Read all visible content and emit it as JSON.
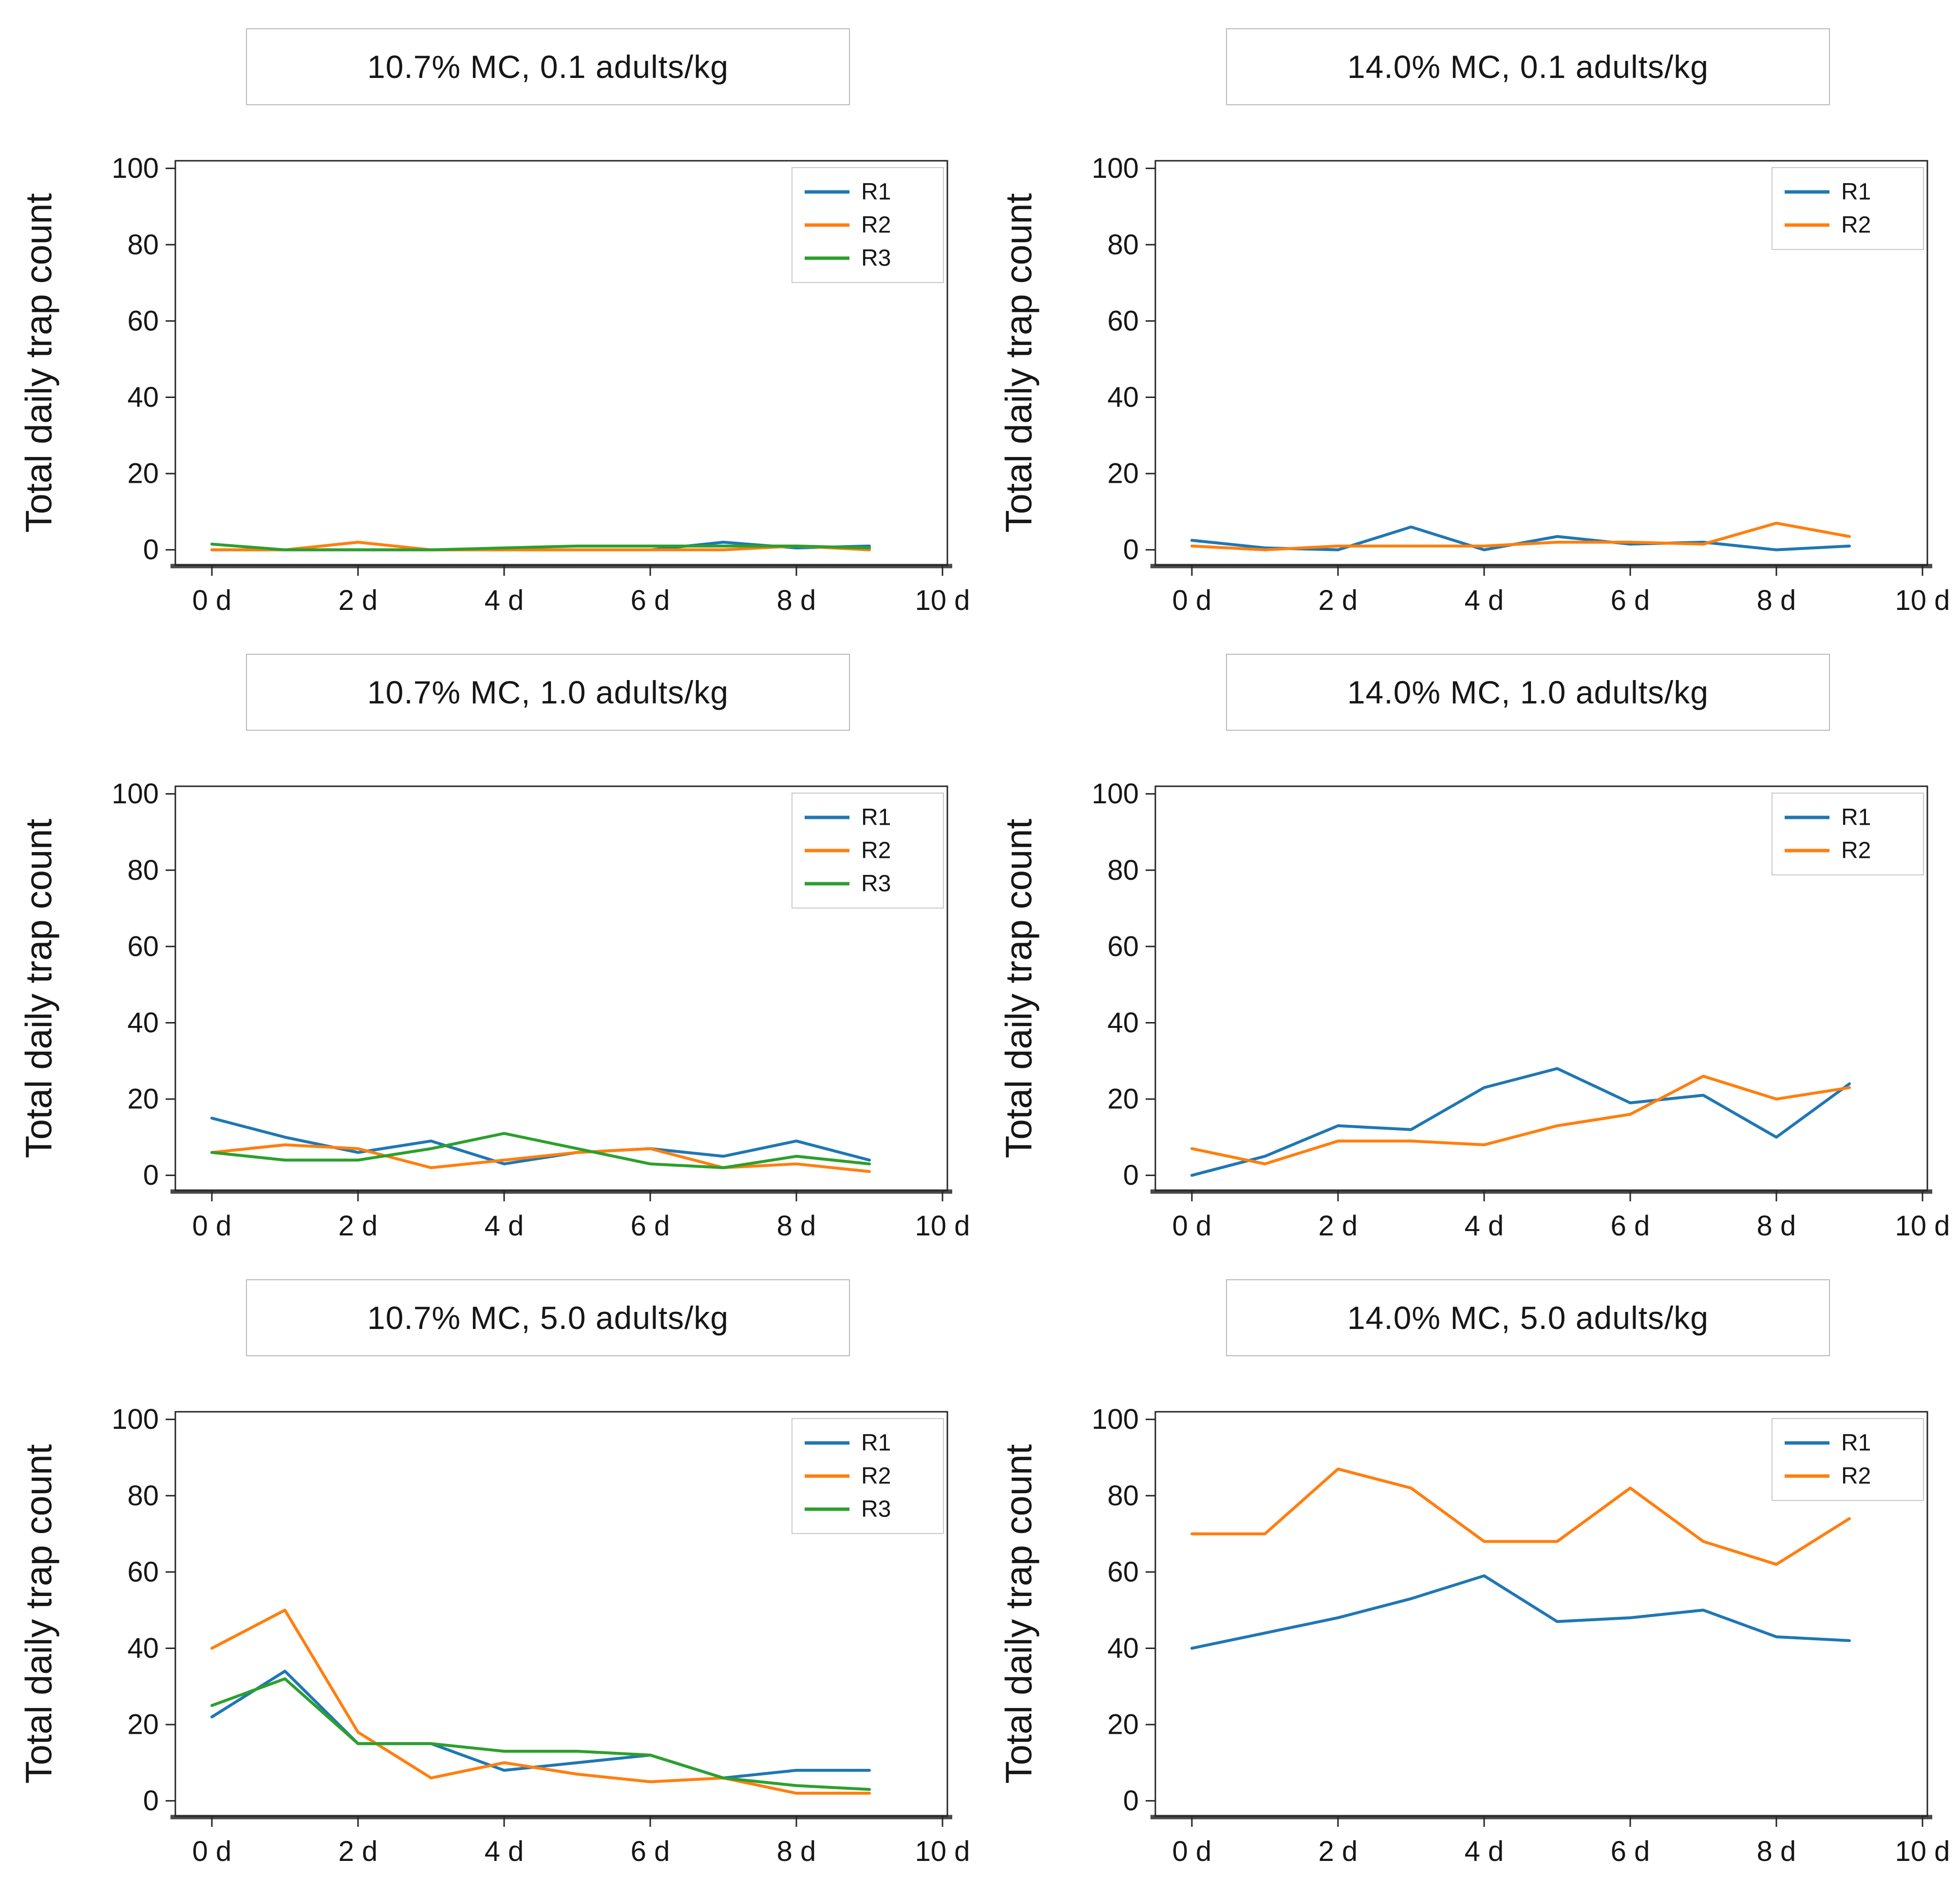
{
  "figure": {
    "ylabel": "Total daily trap count",
    "xlabel": "",
    "background": "#ffffff",
    "colors": {
      "R1": "#1f77b4",
      "R2": "#ff7f0e",
      "R3": "#2ca02c"
    },
    "axis_color": "#262626",
    "y_ticks": [
      0,
      20,
      40,
      60,
      80,
      100
    ],
    "x_tick_days": [
      0,
      2,
      4,
      6,
      8,
      10
    ],
    "x_tick_labels": [
      "0 d",
      "2 d",
      "4 d",
      "6 d",
      "8 d",
      "10 d"
    ]
  },
  "chart_data": [
    {
      "type": "line",
      "title": "10.7% MC, 0.1 adults/kg",
      "xlabel": "",
      "ylabel": "Total daily trap count",
      "ylim": [
        0,
        100
      ],
      "grid": false,
      "legend_position": "upper right",
      "x_days": [
        0,
        1,
        2,
        3,
        4,
        5,
        6,
        7,
        8,
        9
      ],
      "series": [
        {
          "name": "R1",
          "values": [
            0,
            0,
            0,
            0,
            0,
            0,
            0,
            2,
            0.5,
            1
          ]
        },
        {
          "name": "R2",
          "values": [
            0,
            0,
            2,
            0,
            0,
            0,
            0,
            0,
            1,
            0
          ]
        },
        {
          "name": "R3",
          "values": [
            1.5,
            0,
            0,
            0,
            0.5,
            1,
            1,
            1,
            1,
            0.5
          ]
        }
      ]
    },
    {
      "type": "line",
      "title": "14.0% MC, 0.1 adults/kg",
      "xlabel": "",
      "ylabel": "Total daily trap count",
      "ylim": [
        0,
        100
      ],
      "grid": false,
      "legend_position": "upper right",
      "x_days": [
        0,
        1,
        2,
        3,
        4,
        5,
        6,
        7,
        8,
        9
      ],
      "series": [
        {
          "name": "R1",
          "values": [
            2.5,
            0.5,
            0,
            6,
            0,
            3.5,
            1.5,
            2,
            0,
            1
          ]
        },
        {
          "name": "R2",
          "values": [
            1,
            0,
            1,
            1,
            1,
            2,
            2,
            1.5,
            7,
            3.5
          ]
        }
      ]
    },
    {
      "type": "line",
      "title": "10.7% MC, 1.0 adults/kg",
      "xlabel": "",
      "ylabel": "Total daily trap count",
      "ylim": [
        0,
        100
      ],
      "grid": false,
      "legend_position": "upper right",
      "x_days": [
        0,
        1,
        2,
        3,
        4,
        5,
        6,
        7,
        8,
        9
      ],
      "series": [
        {
          "name": "R1",
          "values": [
            15,
            10,
            6,
            9,
            3,
            6,
            7,
            5,
            9,
            4
          ]
        },
        {
          "name": "R2",
          "values": [
            6,
            8,
            7,
            2,
            4,
            6,
            7,
            2,
            3,
            1
          ]
        },
        {
          "name": "R3",
          "values": [
            6,
            4,
            4,
            7,
            11,
            7,
            3,
            2,
            5,
            3
          ]
        }
      ]
    },
    {
      "type": "line",
      "title": "14.0% MC, 1.0 adults/kg",
      "xlabel": "",
      "ylabel": "Total daily trap count",
      "ylim": [
        0,
        100
      ],
      "grid": false,
      "legend_position": "upper right",
      "x_days": [
        0,
        1,
        2,
        3,
        4,
        5,
        6,
        7,
        8,
        9
      ],
      "series": [
        {
          "name": "R1",
          "values": [
            0,
            5,
            13,
            12,
            23,
            28,
            19,
            21,
            10,
            24
          ]
        },
        {
          "name": "R2",
          "values": [
            7,
            3,
            9,
            9,
            8,
            13,
            16,
            26,
            20,
            23
          ]
        }
      ]
    },
    {
      "type": "line",
      "title": "10.7% MC, 5.0 adults/kg",
      "xlabel": "",
      "ylabel": "Total daily trap count",
      "ylim": [
        0,
        100
      ],
      "grid": false,
      "legend_position": "upper right",
      "x_days": [
        0,
        1,
        2,
        3,
        4,
        5,
        6,
        7,
        8,
        9
      ],
      "series": [
        {
          "name": "R1",
          "values": [
            22,
            34,
            15,
            15,
            8,
            10,
            12,
            6,
            8,
            8
          ]
        },
        {
          "name": "R2",
          "values": [
            40,
            50,
            18,
            6,
            10,
            7,
            5,
            6,
            2,
            2
          ]
        },
        {
          "name": "R3",
          "values": [
            25,
            32,
            15,
            15,
            13,
            13,
            12,
            6,
            4,
            3
          ]
        }
      ]
    },
    {
      "type": "line",
      "title": "14.0% MC, 5.0 adults/kg",
      "xlabel": "",
      "ylabel": "Total daily trap count",
      "ylim": [
        0,
        100
      ],
      "grid": false,
      "legend_position": "upper right",
      "x_days": [
        0,
        1,
        2,
        3,
        4,
        5,
        6,
        7,
        8,
        9
      ],
      "series": [
        {
          "name": "R1",
          "values": [
            40,
            44,
            48,
            53,
            59,
            47,
            48,
            50,
            43,
            42
          ]
        },
        {
          "name": "R2",
          "values": [
            70,
            70,
            87,
            82,
            68,
            68,
            82,
            68,
            62,
            74
          ]
        }
      ]
    }
  ]
}
